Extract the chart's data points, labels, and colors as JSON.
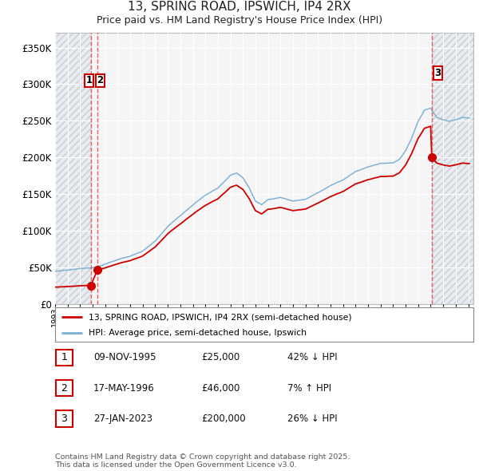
{
  "title": "13, SPRING ROAD, IPSWICH, IP4 2RX",
  "subtitle": "Price paid vs. HM Land Registry's House Price Index (HPI)",
  "ylim": [
    0,
    370000
  ],
  "yticks": [
    0,
    50000,
    100000,
    150000,
    200000,
    250000,
    300000,
    350000
  ],
  "ytick_labels": [
    "£0",
    "£50K",
    "£100K",
    "£150K",
    "£200K",
    "£250K",
    "£300K",
    "£350K"
  ],
  "background_color": "#ffffff",
  "plot_bg_color": "#f5f5f5",
  "grid_color": "#ffffff",
  "red_line_color": "#cc0000",
  "blue_line_color": "#7ab0d4",
  "dashed_color": "#ee4444",
  "hatch_fill_color": "#e8ecf0",
  "hatch_edge_color": "#c8cdd4",
  "sale_prices": [
    25000,
    46000,
    200000
  ],
  "sale_labels": [
    "1",
    "2",
    "3"
  ],
  "legend_entries": [
    "13, SPRING ROAD, IPSWICH, IP4 2RX (semi-detached house)",
    "HPI: Average price, semi-detached house, Ipswich"
  ],
  "table_rows": [
    [
      "1",
      "09-NOV-1995",
      "£25,000",
      "42% ↓ HPI"
    ],
    [
      "2",
      "17-MAY-1996",
      "£46,000",
      "7% ↑ HPI"
    ],
    [
      "3",
      "27-JAN-2023",
      "£200,000",
      "26% ↓ HPI"
    ]
  ],
  "footer": "Contains HM Land Registry data © Crown copyright and database right 2025.\nThis data is licensed under the Open Government Licence v3.0."
}
